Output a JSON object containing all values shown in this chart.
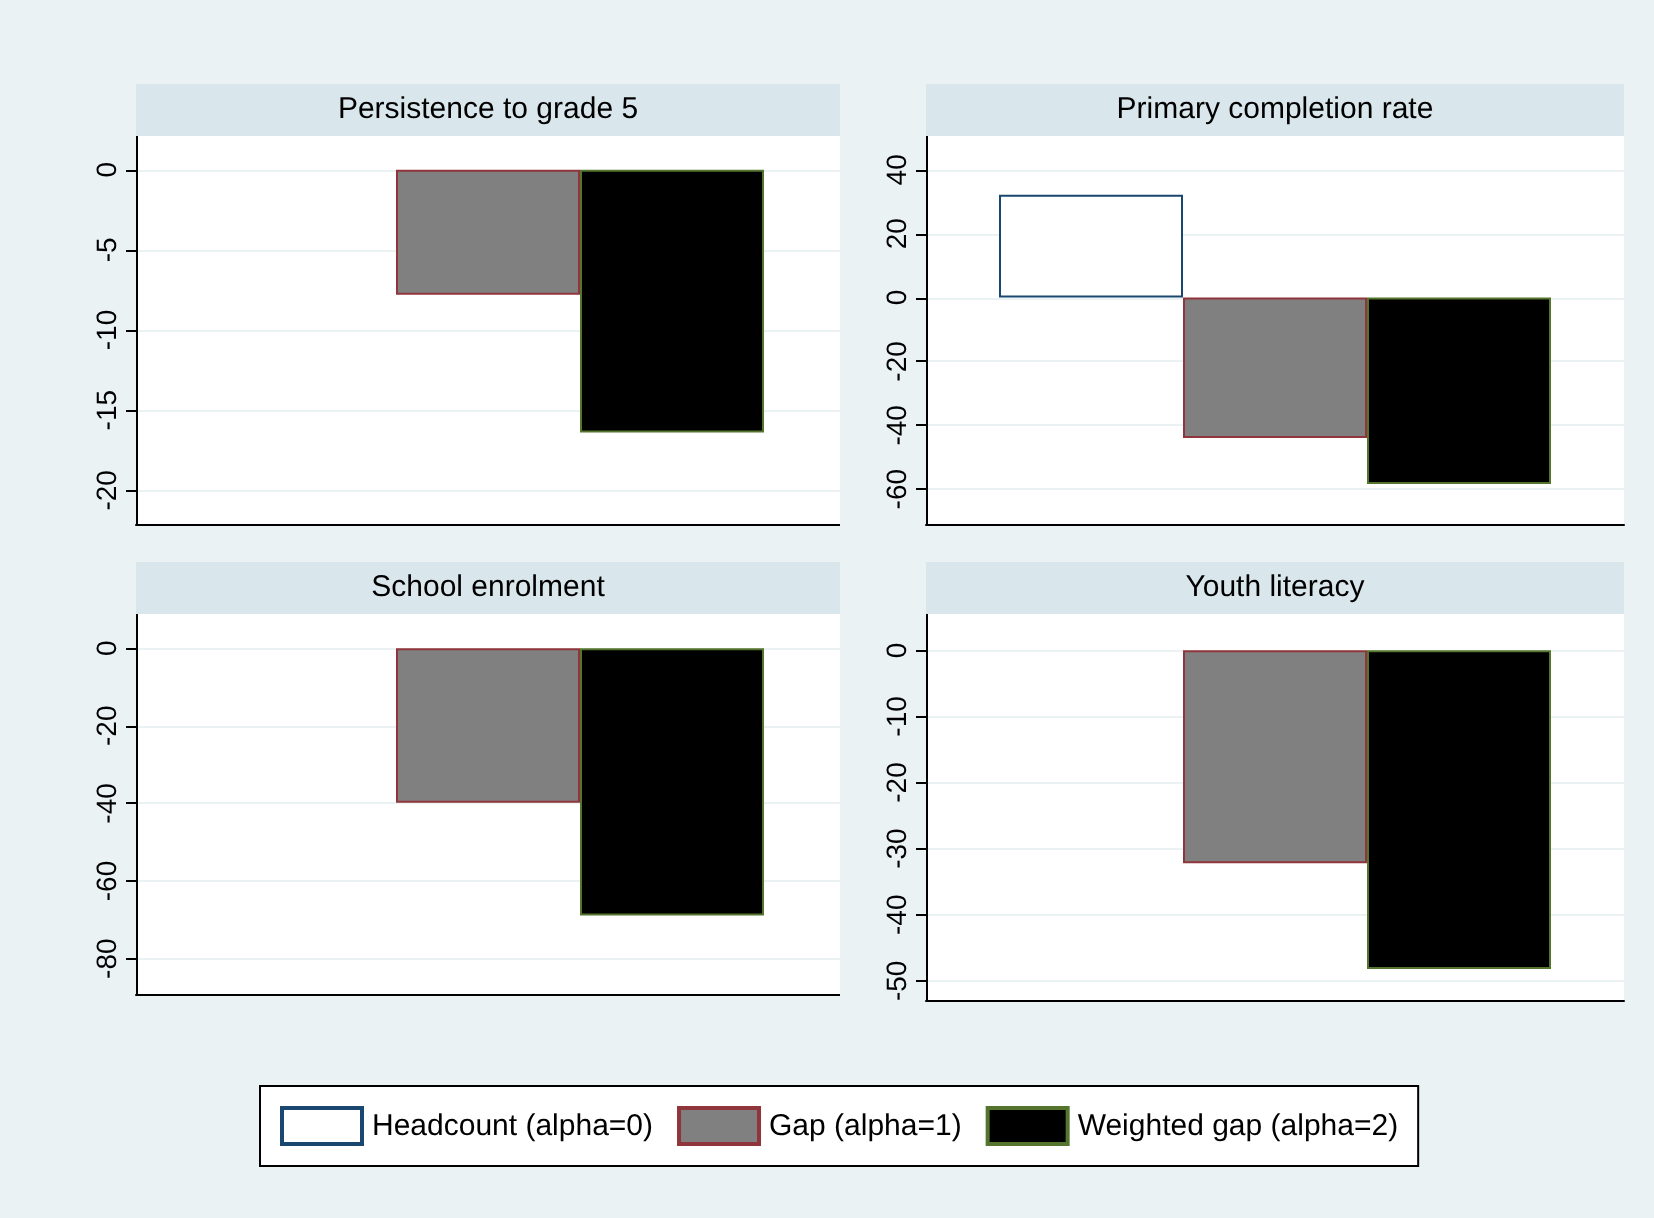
{
  "chart_data": [
    {
      "type": "bar",
      "title": "Persistence to grade 5",
      "categories": [
        null
      ],
      "ylim": [
        -22.1,
        2.1
      ],
      "yticks": [
        0,
        -5,
        -10,
        -15,
        -20
      ],
      "grid": "y",
      "series": [
        {
          "color": "#ffffff",
          "values": [
            null
          ]
        },
        {
          "color": "#808080",
          "values": [
            -7.8
          ]
        },
        {
          "color": "#000000",
          "values": [
            -16.4
          ]
        }
      ]
    },
    {
      "type": "bar",
      "title": "Primary completion rate",
      "categories": [
        null
      ],
      "ylim": [
        -70.9,
        50.6
      ],
      "yticks": [
        40,
        20,
        0,
        -20,
        -40,
        -60
      ],
      "grid": "y",
      "series": [
        {
          "color": "#ffffff",
          "values": [
            32.2
          ]
        },
        {
          "color": "#808080",
          "values": [
            -44
          ]
        },
        {
          "color": "#000000",
          "values": [
            -58.4
          ]
        }
      ]
    },
    {
      "type": "bar",
      "title": "School enrolment",
      "categories": [
        null
      ],
      "ylim": [
        -89.1,
        8.8
      ],
      "yticks": [
        0,
        -20,
        -40,
        -60,
        -80
      ],
      "grid": "y",
      "series": [
        {
          "color": "#ffffff",
          "values": [
            null
          ]
        },
        {
          "color": "#808080",
          "values": [
            -39.8
          ]
        },
        {
          "color": "#000000",
          "values": [
            -68.9
          ]
        }
      ]
    },
    {
      "type": "bar",
      "title": "Youth literacy",
      "categories": [
        null
      ],
      "ylim": [
        -52.9,
        5.5
      ],
      "yticks": [
        0,
        -10,
        -20,
        -30,
        -40,
        -50
      ],
      "grid": "y",
      "legend": "bottom",
      "series": [
        {
          "name": "Headcount (alpha=0)",
          "color": "#ffffff",
          "values": [
            null
          ]
        },
        {
          "name": "Gap (alpha=1)",
          "color": "#808080",
          "values": [
            -32.2
          ]
        },
        {
          "name": "Weighted gap (alpha=2)",
          "color": "#000000",
          "values": [
            -48.2
          ]
        }
      ]
    }
  ]
}
